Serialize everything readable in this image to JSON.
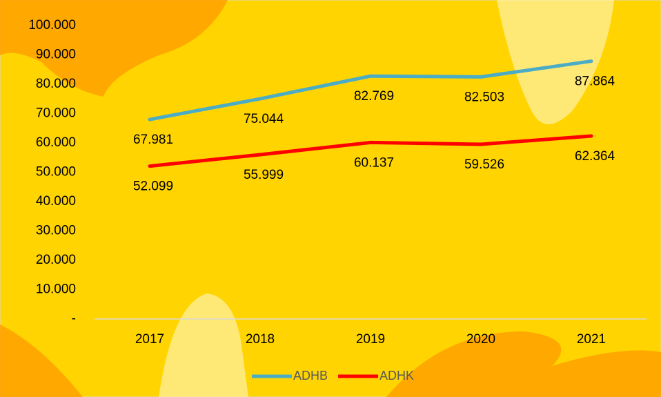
{
  "chart_data": {
    "type": "line",
    "categories": [
      "2017",
      "2018",
      "2019",
      "2020",
      "2021"
    ],
    "series": [
      {
        "name": "ADHB",
        "color": "#4bacc6",
        "values": [
          67981,
          75044,
          82769,
          82503,
          87864
        ],
        "value_labels": [
          "67.981",
          "75.044",
          "82.769",
          "82.503",
          "87.864"
        ]
      },
      {
        "name": "ADHK",
        "color": "#ff0000",
        "values": [
          52099,
          55999,
          60137,
          59526,
          62364
        ],
        "value_labels": [
          "52.099",
          "55.999",
          "60.137",
          "59.526",
          "62.364"
        ]
      }
    ],
    "ylim": [
      0,
      100000
    ],
    "yticks": [
      {
        "value": 0,
        "label": "-"
      },
      {
        "value": 10000,
        "label": "10.000"
      },
      {
        "value": 20000,
        "label": "20.000"
      },
      {
        "value": 30000,
        "label": "30.000"
      },
      {
        "value": 40000,
        "label": "40.000"
      },
      {
        "value": 50000,
        "label": "50.000"
      },
      {
        "value": 60000,
        "label": "60.000"
      },
      {
        "value": 70000,
        "label": "70.000"
      },
      {
        "value": 80000,
        "label": "80.000"
      },
      {
        "value": 90000,
        "label": "90.000"
      },
      {
        "value": 100000,
        "label": "100.000"
      }
    ],
    "legend": "bottom"
  }
}
